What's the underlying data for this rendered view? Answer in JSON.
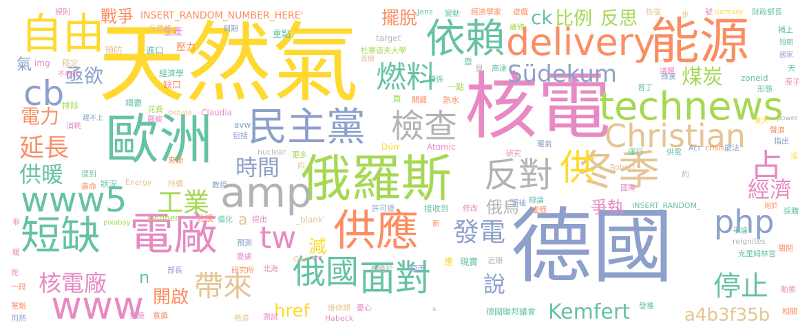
{
  "colors": {
    "yellow": "#FFD92F",
    "blue": "#8DA0CB",
    "green": "#66C2A5",
    "lime": "#A6D854",
    "orange": "#FC8D62",
    "pink": "#E78AC3",
    "tan": "#E5C494",
    "gray": "#B3B3B3"
  },
  "words": [
    {
      "text": "天然氣",
      "color": "yellow"
    },
    {
      "text": "核電",
      "color": "pink"
    },
    {
      "text": "德國",
      "color": "blue"
    },
    {
      "text": "歐洲",
      "color": "green"
    },
    {
      "text": "能源",
      "color": "orange"
    },
    {
      "text": "俄羅斯",
      "color": "lime"
    },
    {
      "text": "自由",
      "color": "yellow"
    },
    {
      "text": "delivery",
      "color": "orange"
    },
    {
      "text": "technews",
      "color": "lime"
    },
    {
      "text": "民主黨",
      "color": "blue"
    },
    {
      "text": "冬季",
      "color": "tan"
    },
    {
      "text": "供應",
      "color": "orange"
    },
    {
      "text": "電廠",
      "color": "pink"
    },
    {
      "text": "短缺",
      "color": "green"
    },
    {
      "text": "amp",
      "color": "gray"
    },
    {
      "text": "www5",
      "color": "green"
    },
    {
      "text": "www",
      "color": "pink"
    },
    {
      "text": "Christian",
      "color": "tan"
    },
    {
      "text": "依賴",
      "color": "green"
    },
    {
      "text": "燃料",
      "color": "green"
    },
    {
      "text": "檢查",
      "color": "gray"
    },
    {
      "text": "反對",
      "color": "gray"
    },
    {
      "text": "供",
      "color": "yellow"
    },
    {
      "text": "占",
      "color": "pink"
    },
    {
      "text": "php",
      "color": "blue"
    },
    {
      "text": "cb",
      "color": "blue"
    },
    {
      "text": "面對",
      "color": "green"
    },
    {
      "text": "Südekum",
      "color": "blue"
    },
    {
      "text": "俄國",
      "color": "green"
    },
    {
      "text": "帶來",
      "color": "tan"
    },
    {
      "text": "Kemfert",
      "color": "green"
    },
    {
      "text": "停止",
      "color": "green"
    },
    {
      "text": "發電",
      "color": "blue"
    },
    {
      "text": "核電廠",
      "color": "pink"
    },
    {
      "text": "tw",
      "color": "pink"
    },
    {
      "text": "工業",
      "color": "lime"
    },
    {
      "text": "延長",
      "color": "orange"
    },
    {
      "text": "a4b3f35b",
      "color": "tan"
    },
    {
      "text": "說",
      "color": "blue"
    },
    {
      "text": "時間",
      "color": "blue"
    },
    {
      "text": "經濟",
      "color": "pink"
    },
    {
      "text": "供暖",
      "color": "green"
    },
    {
      "text": "煤炭",
      "color": "lime"
    },
    {
      "text": "比例",
      "color": "lime"
    },
    {
      "text": "反思",
      "color": "lime"
    },
    {
      "text": "擺脫",
      "color": "orange"
    },
    {
      "text": "爭執",
      "color": "pink"
    },
    {
      "text": "亟欲",
      "color": "blue"
    },
    {
      "text": "電力",
      "color": "orange"
    },
    {
      "text": "戰爭",
      "color": "orange"
    },
    {
      "text": "ck",
      "color": "green"
    },
    {
      "text": "href",
      "color": "yellow"
    },
    {
      "text": "開啟",
      "color": "orange"
    },
    {
      "text": "俄烏",
      "color": "gray"
    },
    {
      "text": "減",
      "color": "yellow"
    },
    {
      "text": "a",
      "color": "tan"
    },
    {
      "text": "n",
      "color": "green"
    },
    {
      "text": "INSERT_RANDOM_NUMBER_HERE'",
      "color": "orange"
    },
    {
      "text": "氣",
      "color": "blue"
    },
    {
      "text": "img",
      "color": "pink"
    },
    {
      "text": "穩定",
      "color": "tan"
    },
    {
      "text": "預防",
      "color": "tan"
    },
    {
      "text": "進口",
      "color": "green"
    },
    {
      "text": "壓力",
      "color": "orange"
    },
    {
      "text": "生產",
      "color": "pink"
    },
    {
      "text": "反應爐",
      "color": "tan"
    },
    {
      "text": "到期",
      "color": "blue"
    },
    {
      "text": "重點",
      "color": "green"
    },
    {
      "text": "規則",
      "color": "pink"
    },
    {
      "text": "經濟學",
      "color": "green"
    },
    {
      "text": "缺口",
      "color": "orange"
    },
    {
      "text": "不可行",
      "color": "pink"
    },
    {
      "text": "排除",
      "color": "lime"
    },
    {
      "text": "消耗",
      "color": "pink"
    },
    {
      "text": "竭盡",
      "color": "green"
    },
    {
      "text": "趕不上",
      "color": "blue"
    },
    {
      "text": "花費",
      "color": "lime"
    },
    {
      "text": "嚴峻",
      "color": "pink"
    },
    {
      "text": "debate",
      "color": "tan"
    },
    {
      "text": "Claudia",
      "color": "pink"
    },
    {
      "text": "avw",
      "color": "blue"
    },
    {
      "text": "包括",
      "color": "blue"
    },
    {
      "text": "nuclear",
      "color": "gray"
    },
    {
      "text": "更多",
      "color": "lime"
    },
    {
      "text": "來源",
      "color": "orange"
    },
    {
      "text": "提到",
      "color": "green"
    },
    {
      "text": "壽命",
      "color": "orange"
    },
    {
      "text": "狀況",
      "color": "green"
    },
    {
      "text": "Energy",
      "color": "tan"
    },
    {
      "text": "持續",
      "color": "tan"
    },
    {
      "text": "教授",
      "color": "blue"
    },
    {
      "text": "四",
      "color": "tan"
    },
    {
      "text": "Lindner",
      "color": "lime"
    },
    {
      "text": "北溪",
      "color": "orange"
    },
    {
      "text": "僵化",
      "color": "green"
    },
    {
      "text": "提出",
      "color": "pink"
    },
    {
      "text": "_blank'",
      "color": "tan"
    },
    {
      "text": "pixabay",
      "color": "lime"
    },
    {
      "text": "預測",
      "color": "blue"
    },
    {
      "text": "憂慮",
      "color": "pink"
    },
    {
      "text": "北海",
      "color": "pink"
    },
    {
      "text": "研究所",
      "color": "orange"
    },
    {
      "text": "Gas",
      "color": "tan"
    },
    {
      "text": "src",
      "color": "pink"
    },
    {
      "text": "部長",
      "color": "blue"
    },
    {
      "text": "措施",
      "color": "pink"
    },
    {
      "text": "意識",
      "color": "orange"
    },
    {
      "text": "熱浪",
      "color": "tan"
    },
    {
      "text": "測試",
      "color": "pink"
    },
    {
      "text": "維修期",
      "color": "tan"
    },
    {
      "text": "憂心",
      "color": "pink"
    },
    {
      "text": "Habeck",
      "color": "pink"
    },
    {
      "text": "有鑑於",
      "color": "gray"
    },
    {
      "text": "原因",
      "color": "blue"
    },
    {
      "text": "應",
      "color": "yellow"
    },
    {
      "text": "現實",
      "color": "green"
    },
    {
      "text": "近期",
      "color": "gray"
    },
    {
      "text": "許可證",
      "color": "blue"
    },
    {
      "text": "接收到",
      "color": "green"
    },
    {
      "text": "修改",
      "color": "pink"
    },
    {
      "text": "新",
      "color": "orange"
    },
    {
      "text": "Dürr",
      "color": "yellow"
    },
    {
      "text": "Atomic",
      "color": "pink"
    },
    {
      "text": "直",
      "color": "lime"
    },
    {
      "text": "關鍵",
      "color": "orange"
    },
    {
      "text": "熱水",
      "color": "orange"
    },
    {
      "text": "關係",
      "color": "green"
    },
    {
      "text": "一點",
      "color": "lime"
    },
    {
      "text": "見",
      "color": "gray"
    },
    {
      "text": "高達",
      "color": "green"
    },
    {
      "text": "暨",
      "color": "green"
    },
    {
      "text": "首爾",
      "color": "tan"
    },
    {
      "text": "target",
      "color": "gray"
    },
    {
      "text": "Jens",
      "color": "green"
    },
    {
      "text": "變動",
      "color": "green"
    },
    {
      "text": "經濟學家",
      "color": "orange"
    },
    {
      "text": "遊戲",
      "color": "orange"
    },
    {
      "text": "恢復",
      "color": "tan"
    },
    {
      "text": "步",
      "color": "tan"
    },
    {
      "text": "號",
      "color": "pink"
    },
    {
      "text": "Germany",
      "color": "yellow"
    },
    {
      "text": "財政部長",
      "color": "green"
    },
    {
      "text": "歲修",
      "color": "lime"
    },
    {
      "text": "杜塞道夫大學",
      "color": "lime"
    },
    {
      "text": "補上",
      "color": "green"
    },
    {
      "text": "短期",
      "color": "green"
    },
    {
      "text": "國家",
      "color": "blue"
    },
    {
      "text": "議題",
      "color": "pink"
    },
    {
      "text": "綠黨",
      "color": "blue"
    },
    {
      "text": "天",
      "color": "green"
    },
    {
      "text": "zoneid",
      "color": "green"
    },
    {
      "text": "形態",
      "color": "green"
    },
    {
      "text": "原子",
      "color": "pink"
    },
    {
      "text": "普丁",
      "color": "green"
    },
    {
      "text": "研究",
      "color": "pink"
    },
    {
      "text": "暖氣",
      "color": "blue"
    },
    {
      "text": "夏天",
      "color": "yellow"
    },
    {
      "text": "power",
      "color": "gray"
    },
    {
      "text": "聲浪",
      "color": "orange"
    },
    {
      "text": "指出",
      "color": "blue"
    },
    {
      "text": "運行",
      "color": "green"
    },
    {
      "text": "能法",
      "color": "blue"
    },
    {
      "text": "沒",
      "color": "yellow"
    },
    {
      "text": "供電",
      "color": "green"
    },
    {
      "text": "Act",
      "color": "blue"
    },
    {
      "text": "crisis",
      "color": "orange"
    },
    {
      "text": "Robert",
      "color": "tan"
    },
    {
      "text": "約",
      "color": "gray"
    },
    {
      "text": "國際",
      "color": "pink"
    },
    {
      "text": "INSERT_RANDOM_",
      "color": "green"
    },
    {
      "text": "用於",
      "color": "orange"
    },
    {
      "text": "採購",
      "color": "green"
    },
    {
      "text": "領袖",
      "color": "blue"
    },
    {
      "text": "辯論",
      "color": "green"
    },
    {
      "text": "虛假",
      "color": "orange"
    },
    {
      "text": "爭論",
      "color": "green"
    },
    {
      "text": "reignites",
      "color": "gray"
    },
    {
      "text": "關閉",
      "color": "orange"
    },
    {
      "text": "克里姆林宮",
      "color": "green"
    },
    {
      "text": "發推",
      "color": "green"
    },
    {
      "text": "德國聯邦議會",
      "color": "green"
    },
    {
      "text": "勒索",
      "color": "pink"
    },
    {
      "text": "相關",
      "color": "orange"
    },
    {
      "text": "非",
      "color": "pink"
    },
    {
      "text": "暖",
      "color": "pink"
    },
    {
      "text": "死",
      "color": "pink"
    },
    {
      "text": "一段",
      "color": "orange"
    },
    {
      "text": "黨魁",
      "color": "orange"
    },
    {
      "text": "用熱",
      "color": "blue"
    },
    {
      "text": "s",
      "color": "gray"
    }
  ]
}
